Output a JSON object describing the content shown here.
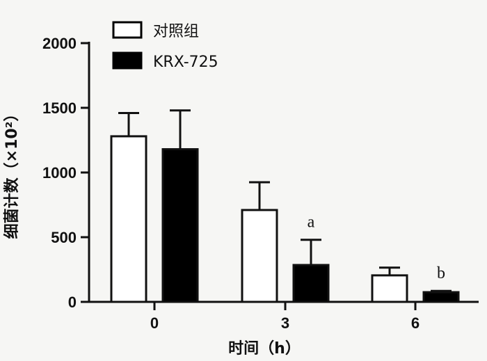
{
  "chart_data": {
    "type": "bar",
    "xlabel": "时间（h）",
    "ylabel": "细菌计数（×10²）",
    "categories": [
      "0",
      "3",
      "6"
    ],
    "ylim": [
      0,
      2000
    ],
    "yticks": [
      "0",
      "500",
      "1000",
      "1500",
      "2000"
    ],
    "series": [
      {
        "name": "对照组",
        "fill": "#ffffff",
        "values": [
          1280,
          710,
          205
        ],
        "errors": [
          180,
          215,
          60
        ]
      },
      {
        "name": "KRX-725",
        "fill": "#000000",
        "values": [
          1180,
          285,
          75
        ],
        "errors": [
          300,
          195,
          10
        ]
      }
    ],
    "annotations": [
      {
        "category": "3",
        "series": "KRX-725",
        "text": "a"
      },
      {
        "category": "6",
        "series": "KRX-725",
        "text": "b"
      }
    ],
    "legend": "top-left",
    "grid": false
  }
}
